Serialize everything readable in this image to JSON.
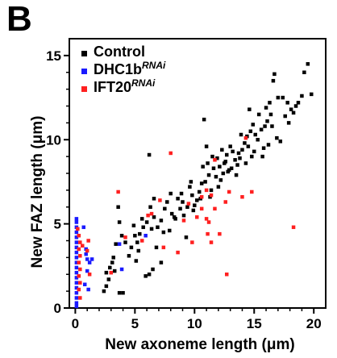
{
  "panel_letter": "B",
  "chart_data": {
    "type": "scatter",
    "title": "",
    "xlabel": "New axoneme length (μm)",
    "ylabel": "New FAZ length (μm)",
    "xlim": [
      -0.5,
      21
    ],
    "ylim": [
      0,
      16
    ],
    "x_ticks": [
      0,
      5,
      10,
      15,
      20
    ],
    "y_ticks": [
      0,
      5,
      10,
      15
    ],
    "grid": false,
    "legend": "top-left",
    "series": [
      {
        "name": "Control",
        "name_sup": "",
        "color": "#000000",
        "points": [
          [
            19.5,
            14.5
          ],
          [
            19.2,
            14.0
          ],
          [
            19.0,
            12.6
          ],
          [
            18.7,
            12.2
          ],
          [
            18.5,
            12.0
          ],
          [
            18.1,
            11.8
          ],
          [
            17.9,
            11.0
          ],
          [
            17.4,
            12.5
          ],
          [
            17.0,
            12.5
          ],
          [
            16.7,
            13.9
          ],
          [
            16.6,
            13.5
          ],
          [
            16.4,
            11.5
          ],
          [
            16.1,
            11.1
          ],
          [
            15.9,
            10.8
          ],
          [
            15.6,
            10.6
          ],
          [
            15.4,
            11.5
          ],
          [
            15.1,
            10.3
          ],
          [
            14.9,
            10.9
          ],
          [
            14.7,
            10.5
          ],
          [
            14.4,
            10.2
          ],
          [
            14.2,
            9.8
          ],
          [
            14.0,
            9.4
          ],
          [
            13.8,
            8.9
          ],
          [
            13.6,
            8.5
          ],
          [
            13.4,
            8.8
          ],
          [
            13.2,
            9.3
          ],
          [
            13.0,
            9.6
          ],
          [
            12.8,
            8.1
          ],
          [
            12.6,
            8.7
          ],
          [
            12.4,
            8.0
          ],
          [
            12.2,
            7.6
          ],
          [
            12.0,
            7.2
          ],
          [
            11.8,
            7.8
          ],
          [
            11.6,
            8.3
          ],
          [
            11.4,
            7.0
          ],
          [
            11.3,
            6.6
          ],
          [
            11.1,
            8.6
          ],
          [
            11.0,
            9.6
          ],
          [
            10.8,
            11.2
          ],
          [
            10.6,
            7.4
          ],
          [
            10.4,
            6.9
          ],
          [
            10.2,
            6.4
          ],
          [
            10.0,
            6.1
          ],
          [
            9.8,
            6.7
          ],
          [
            9.6,
            7.2
          ],
          [
            9.4,
            6.0
          ],
          [
            9.1,
            5.5
          ],
          [
            8.8,
            5.9
          ],
          [
            8.6,
            6.5
          ],
          [
            8.3,
            5.4
          ],
          [
            8.0,
            6.8
          ],
          [
            7.7,
            6.3
          ],
          [
            7.5,
            5.9
          ],
          [
            7.2,
            5.2
          ],
          [
            6.9,
            4.8
          ],
          [
            6.6,
            5.4
          ],
          [
            6.3,
            6.0
          ],
          [
            6.0,
            5.1
          ],
          [
            5.7,
            4.8
          ],
          [
            5.4,
            4.4
          ],
          [
            5.2,
            3.9
          ],
          [
            5.0,
            4.3
          ],
          [
            4.7,
            3.6
          ],
          [
            4.5,
            3.1
          ],
          [
            4.2,
            3.9
          ],
          [
            3.9,
            4.3
          ],
          [
            3.7,
            5.1
          ],
          [
            3.6,
            6.0
          ],
          [
            3.4,
            3.8
          ],
          [
            3.2,
            3.0
          ],
          [
            3.1,
            2.7
          ],
          [
            2.8,
            1.7
          ],
          [
            2.6,
            1.3
          ],
          [
            2.4,
            1.0
          ],
          [
            2.6,
            2.1
          ],
          [
            3.7,
            0.9
          ],
          [
            4.0,
            0.9
          ],
          [
            5.9,
            1.9
          ],
          [
            6.2,
            2.0
          ],
          [
            6.5,
            2.3
          ],
          [
            7.2,
            2.7
          ],
          [
            6.8,
            3.6
          ],
          [
            5.1,
            2.8
          ],
          [
            5.6,
            5.3
          ],
          [
            12.1,
            8.4
          ],
          [
            15.7,
            9.0
          ],
          [
            16.2,
            9.7
          ],
          [
            16.9,
            10.1
          ],
          [
            17.2,
            9.9
          ],
          [
            7.9,
            4.6
          ],
          [
            8.1,
            5.6
          ],
          [
            9.0,
            6.3
          ],
          [
            9.3,
            4.2
          ],
          [
            6.2,
            9.1
          ],
          [
            14.5,
            9.6
          ],
          [
            13.1,
            8.3
          ],
          [
            10.9,
            7.5
          ],
          [
            11.9,
            8.9
          ],
          [
            15.3,
            10.0
          ],
          [
            12.7,
            9.1
          ],
          [
            6.6,
            6.5
          ],
          [
            13.7,
            9.2
          ],
          [
            14.8,
            9.0
          ],
          [
            16.5,
            10.8
          ],
          [
            17.6,
            11.4
          ],
          [
            11.5,
            9.0
          ],
          [
            12.9,
            8.2
          ],
          [
            9.7,
            7.5
          ],
          [
            8.4,
            5.3
          ],
          [
            10.5,
            6.5
          ],
          [
            13.9,
            10.3
          ],
          [
            14.3,
            8.6
          ],
          [
            15.0,
            9.3
          ],
          [
            16.0,
            11.9
          ],
          [
            12.3,
            9.4
          ],
          [
            11.2,
            7.9
          ],
          [
            8.9,
            6.8
          ],
          [
            10.7,
            8.4
          ],
          [
            9.9,
            5.8
          ],
          [
            7.4,
            4.5
          ],
          [
            6.4,
            4.7
          ],
          [
            5.3,
            3.4
          ],
          [
            4.9,
            4.9
          ],
          [
            3.3,
            2.2
          ],
          [
            2.9,
            2.4
          ],
          [
            18.3,
            11.6
          ],
          [
            19.8,
            12.7
          ],
          [
            17.8,
            12.2
          ],
          [
            13.5,
            7.9
          ],
          [
            14.6,
            11.8
          ],
          [
            15.8,
            9.5
          ],
          [
            16.3,
            12.2
          ],
          [
            12.5,
            8.6
          ]
        ]
      },
      {
        "name": "DHC1b",
        "name_sup": "RNAi",
        "color": "#1a1aff",
        "points": [
          [
            0.1,
            0.1
          ],
          [
            0.1,
            0.3
          ],
          [
            0.1,
            0.6
          ],
          [
            0.1,
            0.9
          ],
          [
            0.1,
            1.2
          ],
          [
            0.1,
            1.5
          ],
          [
            0.1,
            1.8
          ],
          [
            0.1,
            2.1
          ],
          [
            0.1,
            2.4
          ],
          [
            0.1,
            2.7
          ],
          [
            0.1,
            3.0
          ],
          [
            0.1,
            3.3
          ],
          [
            0.1,
            3.6
          ],
          [
            0.1,
            3.9
          ],
          [
            0.1,
            4.2
          ],
          [
            0.1,
            4.5
          ],
          [
            0.1,
            4.8
          ],
          [
            0.1,
            5.1
          ],
          [
            0.1,
            5.3
          ],
          [
            0.7,
            4.8
          ],
          [
            0.9,
            3.5
          ],
          [
            1.0,
            2.9
          ],
          [
            1.2,
            2.7
          ],
          [
            1.0,
            2.2
          ],
          [
            0.8,
            1.4
          ],
          [
            1.4,
            2.9
          ],
          [
            1.1,
            1.1
          ],
          [
            0.9,
            3.2
          ],
          [
            3.9,
            2.3
          ],
          [
            3.7,
            3.8
          ],
          [
            5.9,
            4.3
          ]
        ]
      },
      {
        "name": "IFT20",
        "name_sup": "RNAi",
        "color": "#ff2020",
        "points": [
          [
            0.2,
            4.7
          ],
          [
            0.3,
            4.3
          ],
          [
            0.4,
            3.9
          ],
          [
            0.3,
            3.5
          ],
          [
            0.4,
            3.1
          ],
          [
            0.3,
            2.7
          ],
          [
            0.4,
            2.3
          ],
          [
            0.3,
            1.9
          ],
          [
            0.4,
            1.5
          ],
          [
            0.3,
            1.1
          ],
          [
            0.4,
            0.6
          ],
          [
            0.6,
            3.7
          ],
          [
            1.1,
            4.0
          ],
          [
            1.0,
            3.4
          ],
          [
            1.2,
            2.0
          ],
          [
            3.0,
            2.1
          ],
          [
            3.6,
            6.9
          ],
          [
            4.2,
            4.2
          ],
          [
            5.6,
            4.0
          ],
          [
            6.1,
            5.5
          ],
          [
            6.4,
            5.6
          ],
          [
            7.1,
            6.4
          ],
          [
            7.4,
            3.6
          ],
          [
            8.6,
            3.3
          ],
          [
            8.0,
            9.2
          ],
          [
            9.1,
            5.2
          ],
          [
            9.5,
            6.2
          ],
          [
            9.8,
            3.9
          ],
          [
            10.2,
            5.4
          ],
          [
            10.6,
            5.9
          ],
          [
            10.6,
            6.6
          ],
          [
            11.0,
            7.0
          ],
          [
            11.0,
            5.3
          ],
          [
            11.2,
            5.1
          ],
          [
            11.4,
            3.9
          ],
          [
            11.1,
            4.4
          ],
          [
            11.4,
            6.7
          ],
          [
            11.7,
            5.9
          ],
          [
            12.1,
            4.4
          ],
          [
            12.6,
            6.3
          ],
          [
            12.7,
            2.0
          ],
          [
            12.9,
            6.9
          ],
          [
            14.0,
            6.6
          ],
          [
            14.8,
            6.9
          ],
          [
            14.3,
            10.1
          ],
          [
            18.3,
            4.8
          ],
          [
            11.7,
            8.8
          ]
        ]
      }
    ]
  }
}
